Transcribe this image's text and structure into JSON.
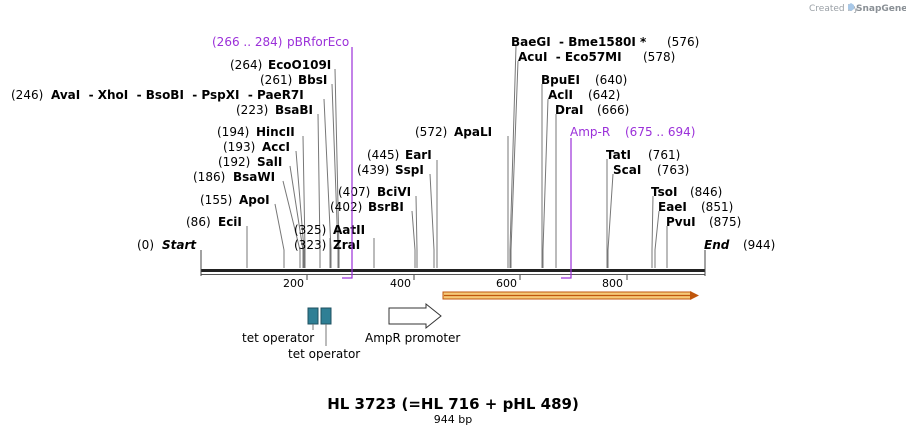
{
  "credit": {
    "prefix": "Created by",
    "brand": "SnapGene"
  },
  "title": "HL 3723 (=HL 716 + pHL 489)",
  "length_label": "944 bp",
  "start": {
    "pos": "(0)",
    "label": "Start"
  },
  "end": {
    "pos": "(944)",
    "label": "End"
  },
  "ticks": [
    "200",
    "400",
    "600",
    "800"
  ],
  "sites_left": [
    {
      "pos": "(264)",
      "name": "EcoO109I"
    },
    {
      "pos": "(261)",
      "name": "BbsI"
    },
    {
      "pos": "(246)",
      "name": "AvaI  - XhoI  - BsoBI  - PspXI  - PaeR7I"
    },
    {
      "pos": "(223)",
      "name": "BsaBI"
    },
    {
      "pos": "(194)",
      "name": "HincII"
    },
    {
      "pos": "(193)",
      "name": "AccI"
    },
    {
      "pos": "(192)",
      "name": "SalI"
    },
    {
      "pos": "(186)",
      "name": "BsaWI"
    },
    {
      "pos": "(155)",
      "name": "ApoI"
    },
    {
      "pos": "(86)",
      "name": "EciI"
    }
  ],
  "sites_mid": [
    {
      "pos": "(445)",
      "name": "EarI"
    },
    {
      "pos": "(439)",
      "name": "SspI"
    },
    {
      "pos": "(407)",
      "name": "BciVI"
    },
    {
      "pos": "(402)",
      "name": "BsrBI"
    },
    {
      "pos": "(325)",
      "name": "AatII"
    },
    {
      "pos": "(323)",
      "name": "ZraI"
    },
    {
      "pos": "(572)",
      "name": "ApaLI"
    }
  ],
  "sites_right": [
    {
      "name": "BaeGI  - Bme1580I *",
      "pos": "(576)"
    },
    {
      "name": "AcuI  - Eco57MI",
      "pos": "(578)"
    },
    {
      "name": "BpuEI",
      "pos": "(640)"
    },
    {
      "name": "AclI",
      "pos": "(642)"
    },
    {
      "name": "DraI",
      "pos": "(666)"
    },
    {
      "name": "TatI",
      "pos": "(761)"
    },
    {
      "name": "ScaI",
      "pos": "(763)"
    },
    {
      "name": "TsoI",
      "pos": "(846)"
    },
    {
      "name": "EaeI",
      "pos": "(851)"
    },
    {
      "name": "PvuI",
      "pos": "(875)"
    }
  ],
  "primers": [
    {
      "range": "(266 .. 284)",
      "name": "pBRforEco"
    },
    {
      "name": "Amp-R",
      "range": "(675 .. 694)"
    }
  ],
  "features": {
    "tet_operator_1": "tet operator",
    "tet_operator_2": "tet operator",
    "ampr_promoter": "AmpR promoter"
  },
  "colors": {
    "primer": "#9b30d9",
    "operator": "#2f7f95",
    "cds": "#f5c978",
    "cds_edge": "#c0560c"
  }
}
